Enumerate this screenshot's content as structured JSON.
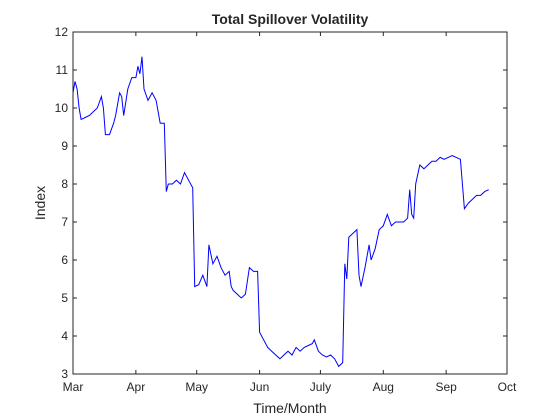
{
  "chart_data": {
    "type": "line",
    "title": "Total Spillover Volatility",
    "xlabel": "Time/Month",
    "ylabel": "Index",
    "ylim": [
      3,
      12
    ],
    "yticks": [
      3,
      4,
      5,
      6,
      7,
      8,
      9,
      10,
      11,
      12
    ],
    "xlim": [
      "2023-03-01",
      "2023-10-01"
    ],
    "xticks": [
      {
        "date": "2023-03-01",
        "label": "Mar"
      },
      {
        "date": "2023-04-01",
        "label": "Apr"
      },
      {
        "date": "2023-05-01",
        "label": "May"
      },
      {
        "date": "2023-06-01",
        "label": "Jun"
      },
      {
        "date": "2023-07-01",
        "label": "July"
      },
      {
        "date": "2023-08-01",
        "label": "Aug"
      },
      {
        "date": "2023-09-01",
        "label": "Sep"
      },
      {
        "date": "2023-10-01",
        "label": "Oct"
      }
    ],
    "grid": false,
    "series": [
      {
        "color": "#0000ff",
        "points": [
          [
            "2023-03-01",
            10.4
          ],
          [
            "2023-03-02",
            10.7
          ],
          [
            "2023-03-03",
            10.5
          ],
          [
            "2023-03-04",
            10.0
          ],
          [
            "2023-03-05",
            9.7
          ],
          [
            "2023-03-07",
            9.75
          ],
          [
            "2023-03-09",
            9.8
          ],
          [
            "2023-03-11",
            9.9
          ],
          [
            "2023-03-13",
            10.0
          ],
          [
            "2023-03-15",
            10.3
          ],
          [
            "2023-03-16",
            10.0
          ],
          [
            "2023-03-17",
            9.3
          ],
          [
            "2023-03-19",
            9.3
          ],
          [
            "2023-03-21",
            9.6
          ],
          [
            "2023-03-22",
            9.8
          ],
          [
            "2023-03-24",
            10.4
          ],
          [
            "2023-03-25",
            10.3
          ],
          [
            "2023-03-26",
            9.8
          ],
          [
            "2023-03-28",
            10.5
          ],
          [
            "2023-03-30",
            10.8
          ],
          [
            "2023-04-01",
            10.8
          ],
          [
            "2023-04-02",
            11.1
          ],
          [
            "2023-04-03",
            10.9
          ],
          [
            "2023-04-04",
            11.35
          ],
          [
            "2023-04-05",
            10.5
          ],
          [
            "2023-04-07",
            10.2
          ],
          [
            "2023-04-09",
            10.4
          ],
          [
            "2023-04-11",
            10.2
          ],
          [
            "2023-04-13",
            9.6
          ],
          [
            "2023-04-15",
            9.6
          ],
          [
            "2023-04-16",
            7.8
          ],
          [
            "2023-04-17",
            8.0
          ],
          [
            "2023-04-19",
            8.0
          ],
          [
            "2023-04-21",
            8.1
          ],
          [
            "2023-04-23",
            8.0
          ],
          [
            "2023-04-25",
            8.3
          ],
          [
            "2023-04-27",
            8.1
          ],
          [
            "2023-04-29",
            7.9
          ],
          [
            "2023-04-30",
            5.3
          ],
          [
            "2023-05-02",
            5.35
          ],
          [
            "2023-05-04",
            5.6
          ],
          [
            "2023-05-06",
            5.3
          ],
          [
            "2023-05-07",
            6.4
          ],
          [
            "2023-05-09",
            5.9
          ],
          [
            "2023-05-11",
            6.1
          ],
          [
            "2023-05-13",
            5.8
          ],
          [
            "2023-05-15",
            5.6
          ],
          [
            "2023-05-17",
            5.7
          ],
          [
            "2023-05-18",
            5.3
          ],
          [
            "2023-05-19",
            5.2
          ],
          [
            "2023-05-21",
            5.1
          ],
          [
            "2023-05-23",
            5.0
          ],
          [
            "2023-05-25",
            5.1
          ],
          [
            "2023-05-27",
            5.8
          ],
          [
            "2023-05-29",
            5.7
          ],
          [
            "2023-05-31",
            5.7
          ],
          [
            "2023-06-01",
            4.1
          ],
          [
            "2023-06-03",
            3.9
          ],
          [
            "2023-06-05",
            3.7
          ],
          [
            "2023-06-07",
            3.6
          ],
          [
            "2023-06-09",
            3.5
          ],
          [
            "2023-06-11",
            3.4
          ],
          [
            "2023-06-13",
            3.5
          ],
          [
            "2023-06-15",
            3.6
          ],
          [
            "2023-06-17",
            3.5
          ],
          [
            "2023-06-19",
            3.7
          ],
          [
            "2023-06-21",
            3.6
          ],
          [
            "2023-06-23",
            3.7
          ],
          [
            "2023-06-25",
            3.75
          ],
          [
            "2023-06-27",
            3.8
          ],
          [
            "2023-06-28",
            3.9
          ],
          [
            "2023-06-30",
            3.6
          ],
          [
            "2023-07-02",
            3.5
          ],
          [
            "2023-07-04",
            3.45
          ],
          [
            "2023-07-06",
            3.5
          ],
          [
            "2023-07-08",
            3.4
          ],
          [
            "2023-07-10",
            3.2
          ],
          [
            "2023-07-12",
            3.3
          ],
          [
            "2023-07-13",
            5.9
          ],
          [
            "2023-07-14",
            5.5
          ],
          [
            "2023-07-15",
            6.6
          ],
          [
            "2023-07-17",
            6.7
          ],
          [
            "2023-07-19",
            6.8
          ],
          [
            "2023-07-20",
            5.6
          ],
          [
            "2023-07-21",
            5.3
          ],
          [
            "2023-07-23",
            5.8
          ],
          [
            "2023-07-25",
            6.4
          ],
          [
            "2023-07-26",
            6.0
          ],
          [
            "2023-07-28",
            6.3
          ],
          [
            "2023-07-30",
            6.8
          ],
          [
            "2023-08-01",
            6.9
          ],
          [
            "2023-08-03",
            7.2
          ],
          [
            "2023-08-05",
            6.9
          ],
          [
            "2023-08-07",
            7.0
          ],
          [
            "2023-08-09",
            7.0
          ],
          [
            "2023-08-11",
            7.0
          ],
          [
            "2023-08-13",
            7.1
          ],
          [
            "2023-08-14",
            7.85
          ],
          [
            "2023-08-15",
            7.2
          ],
          [
            "2023-08-16",
            7.1
          ],
          [
            "2023-08-17",
            8.0
          ],
          [
            "2023-08-19",
            8.5
          ],
          [
            "2023-08-21",
            8.4
          ],
          [
            "2023-08-23",
            8.5
          ],
          [
            "2023-08-25",
            8.6
          ],
          [
            "2023-08-27",
            8.6
          ],
          [
            "2023-08-29",
            8.7
          ],
          [
            "2023-08-31",
            8.65
          ],
          [
            "2023-09-02",
            8.7
          ],
          [
            "2023-09-04",
            8.75
          ],
          [
            "2023-09-06",
            8.7
          ],
          [
            "2023-09-08",
            8.65
          ],
          [
            "2023-09-09",
            8.0
          ],
          [
            "2023-09-10",
            7.35
          ],
          [
            "2023-09-12",
            7.5
          ],
          [
            "2023-09-14",
            7.6
          ],
          [
            "2023-09-16",
            7.7
          ],
          [
            "2023-09-18",
            7.7
          ],
          [
            "2023-09-20",
            7.8
          ],
          [
            "2023-09-22",
            7.85
          ]
        ]
      }
    ]
  }
}
